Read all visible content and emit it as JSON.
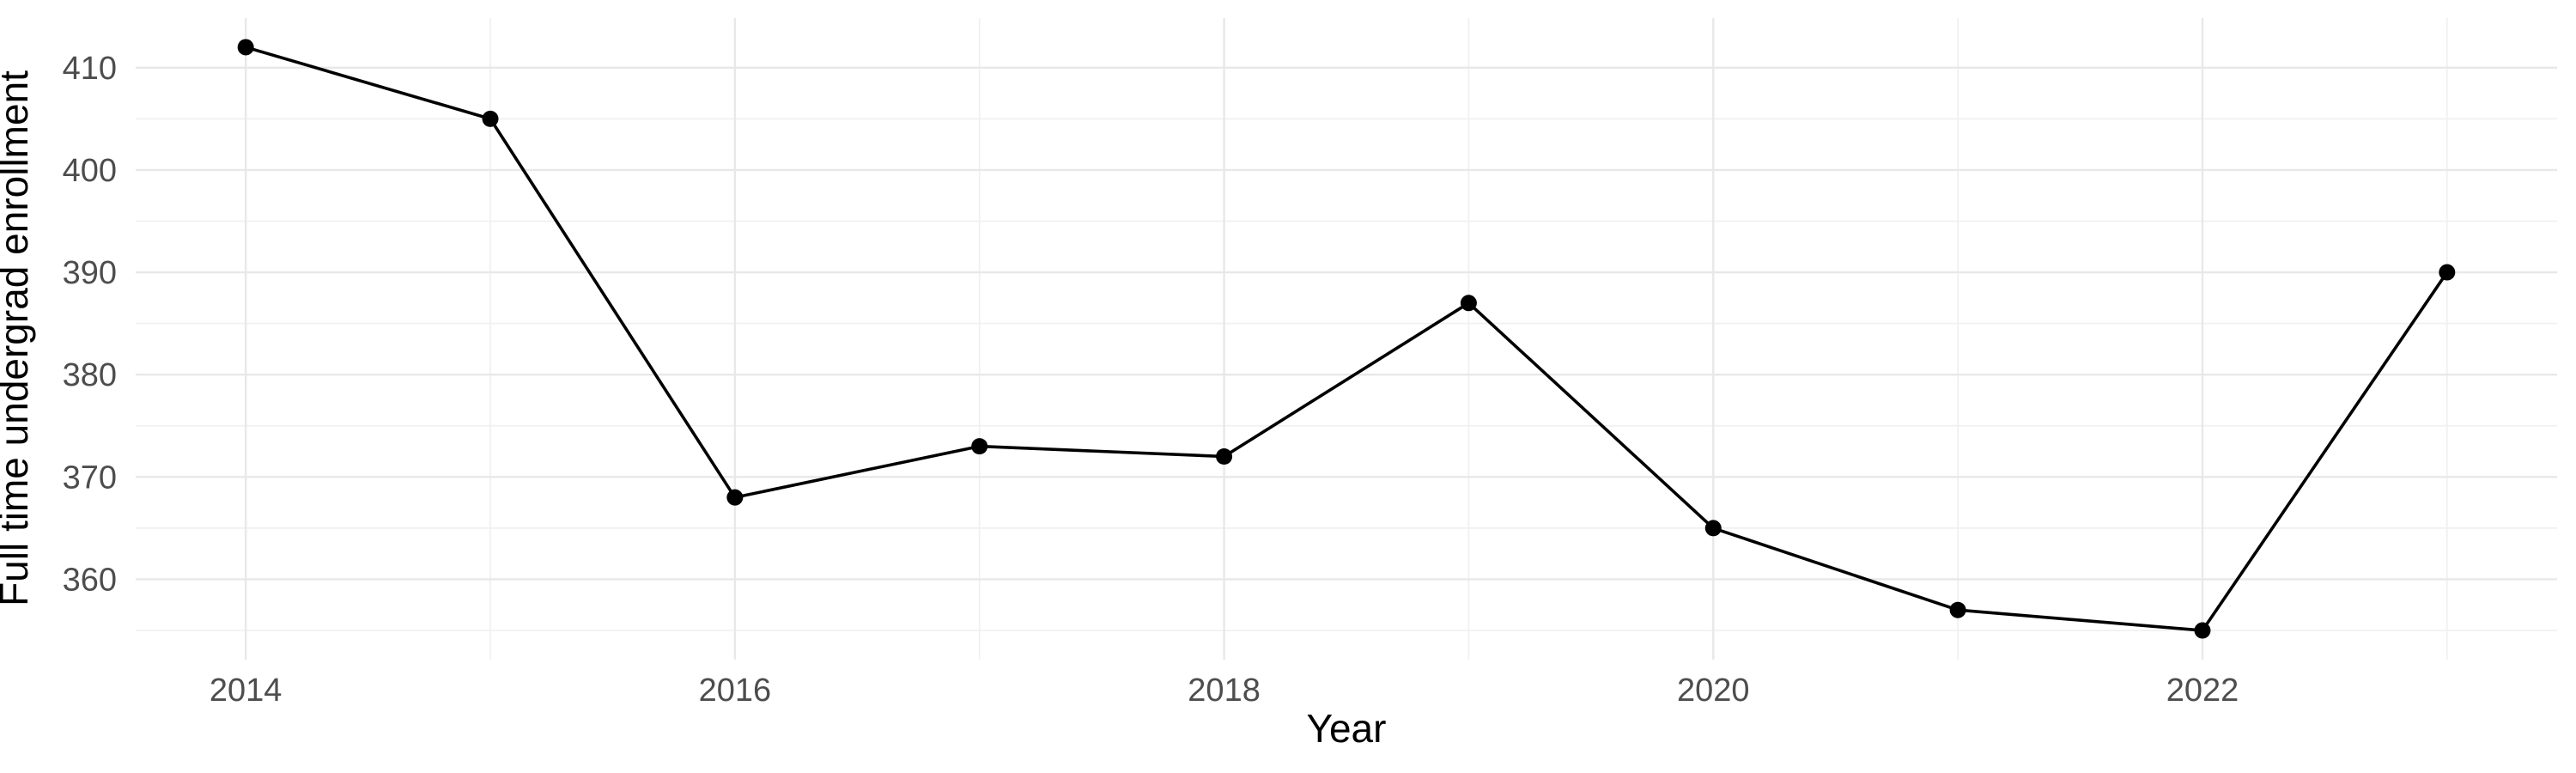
{
  "chart_data": {
    "type": "line",
    "title": "",
    "xlabel": "Year",
    "ylabel": "Full time undergrad enrollment",
    "x": [
      2014,
      2015,
      2016,
      2017,
      2018,
      2019,
      2020,
      2021,
      2022,
      2023
    ],
    "series": [
      {
        "name": "Full time undergrad enrollment",
        "values": [
          412,
          405,
          368,
          373,
          372,
          387,
          365,
          357,
          355,
          390
        ]
      }
    ],
    "xlim": [
      2013.55,
      2023.45
    ],
    "ylim": [
      352.15,
      414.85
    ],
    "x_ticks": {
      "major": [
        2014,
        2016,
        2018,
        2020,
        2022
      ],
      "minor": [
        2015,
        2017,
        2019,
        2021,
        2023
      ],
      "labels": [
        "2014",
        "2016",
        "2018",
        "2020",
        "2022"
      ]
    },
    "y_ticks": {
      "major": [
        360,
        370,
        380,
        390,
        400,
        410
      ],
      "minor": [
        355,
        365,
        375,
        385,
        395,
        405
      ],
      "labels": [
        "360",
        "370",
        "380",
        "390",
        "400",
        "410"
      ]
    },
    "grid": true,
    "legend": "none",
    "style": {
      "background": "#FFFFFF",
      "line_color": "#000000",
      "point_color": "#000000",
      "grid_major_color": "#E8E8E8",
      "grid_minor_color": "#F0F0F0",
      "tick_label_color": "#4D4D4D",
      "axis_title_color": "#000000"
    }
  }
}
